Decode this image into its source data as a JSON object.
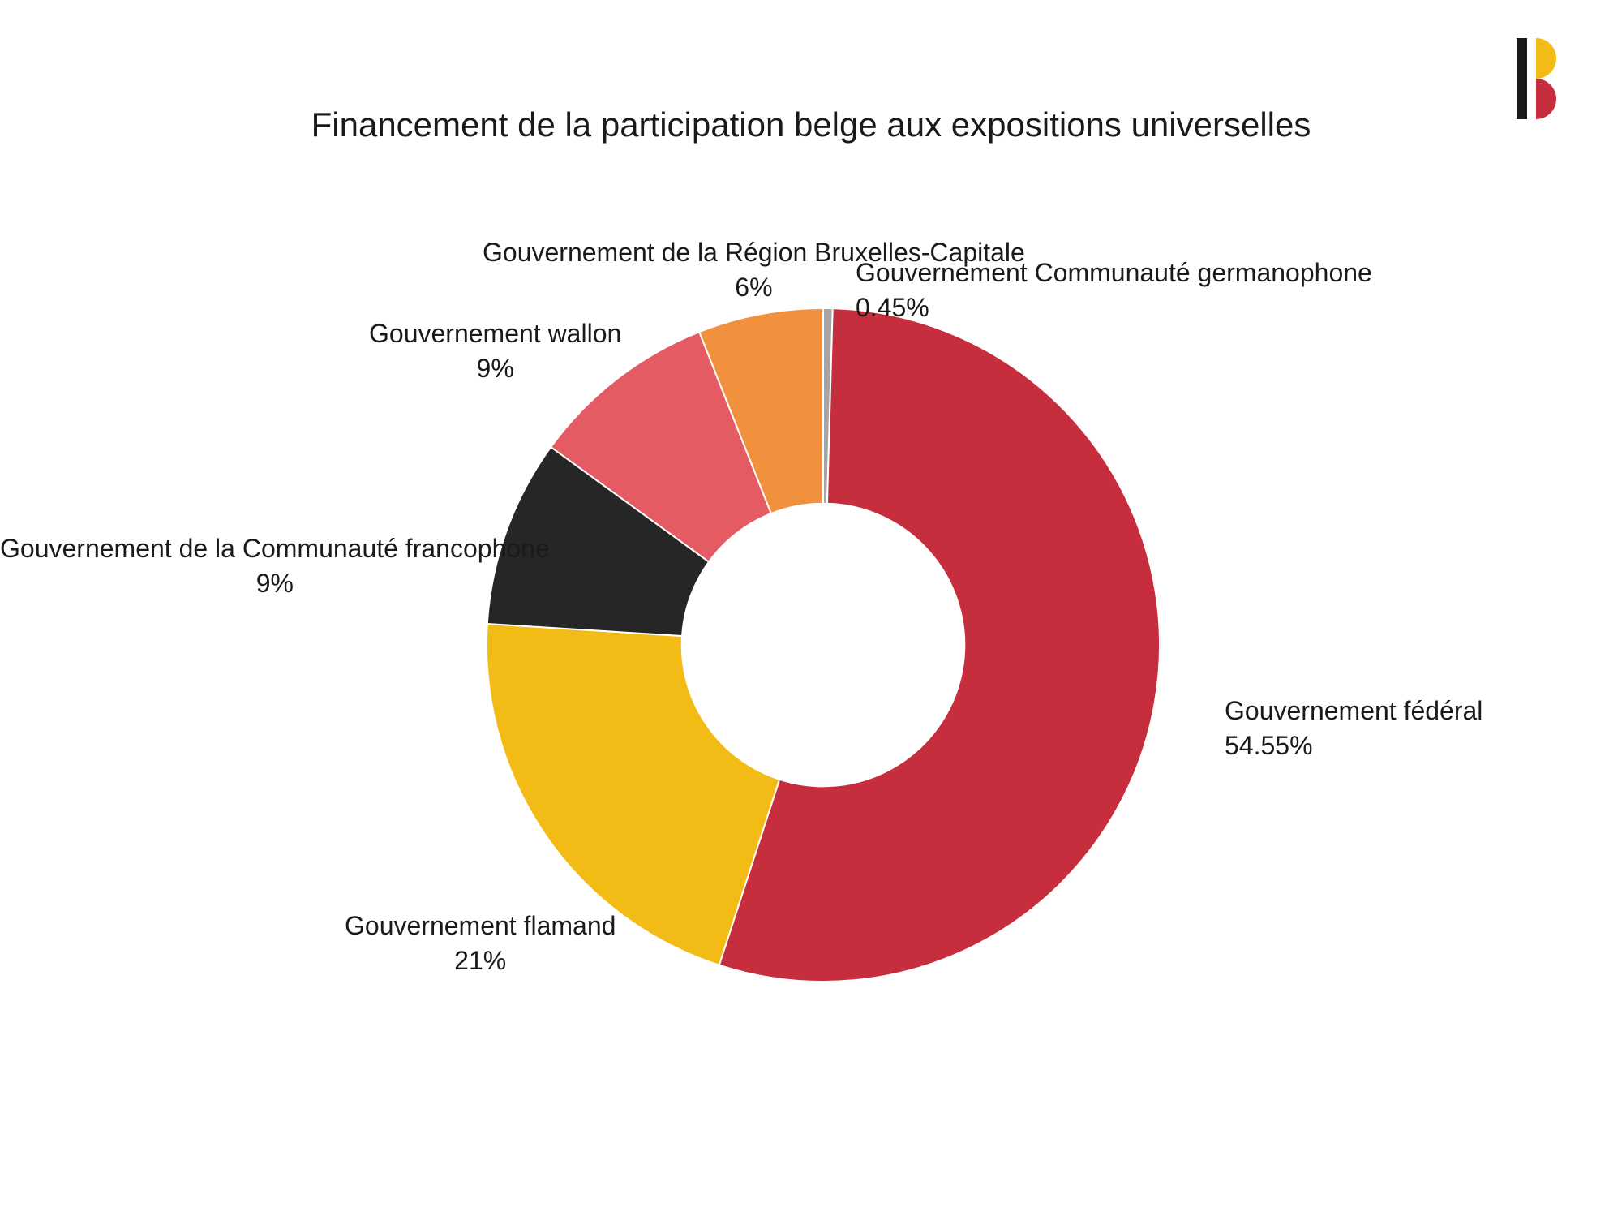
{
  "title": "Financement de la participation belge aux expositions universelles",
  "chart": {
    "type": "donut",
    "inner_radius_ratio": 0.42,
    "background_color": "#ffffff",
    "slices": [
      {
        "id": "germanophone",
        "label": "Gouvernement Communauté germanophone",
        "value_label": "0.45%",
        "value": 0.45,
        "color": "#a5a5a5"
      },
      {
        "id": "federal",
        "label": "Gouvernement fédéral",
        "value_label": "54.55%",
        "value": 54.55,
        "color": "#c72e3d"
      },
      {
        "id": "flamand",
        "label": "Gouvernement flamand",
        "value_label": "21%",
        "value": 21,
        "color": "#f2bb16"
      },
      {
        "id": "francophone",
        "label": "Gouvernement de la Communauté francophone",
        "value_label": "9%",
        "value": 9,
        "color": "#262626"
      },
      {
        "id": "wallon",
        "label": "Gouvernement wallon",
        "value_label": "9%",
        "value": 9,
        "color": "#e55b63"
      },
      {
        "id": "bruxelles",
        "label": "Gouvernement de la Région Bruxelles-Capitale",
        "value_label": "6%",
        "value": 6,
        "color": "#f2913d"
      }
    ],
    "gap_color": "#ffffff",
    "gap_width": 2,
    "label_fontsize": 32,
    "title_fontsize": 42,
    "label_color": "#1a1a1a"
  },
  "logo": {
    "bar_black": "#1a1a1a",
    "half_yellow": "#f2bb16",
    "half_red": "#c72e3d"
  }
}
